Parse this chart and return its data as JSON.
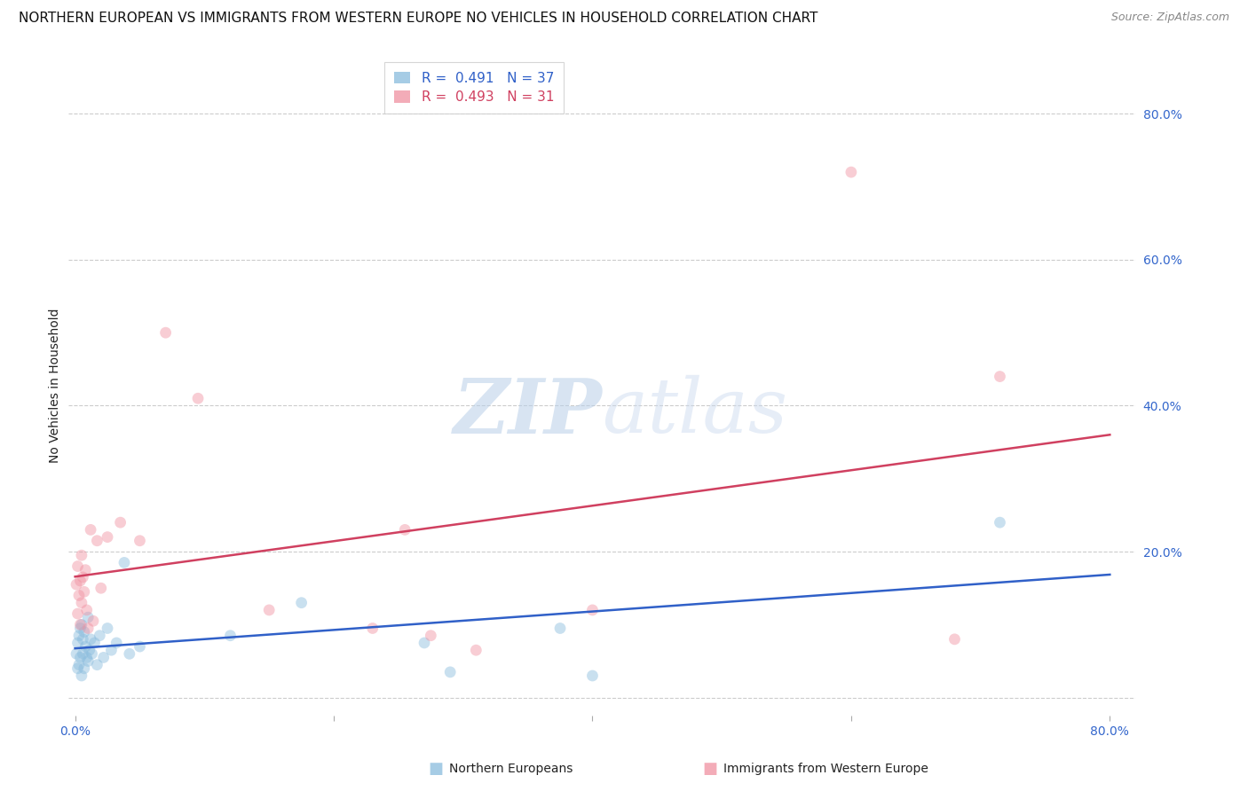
{
  "title": "NORTHERN EUROPEAN VS IMMIGRANTS FROM WESTERN EUROPE NO VEHICLES IN HOUSEHOLD CORRELATION CHART",
  "source": "Source: ZipAtlas.com",
  "ylabel": "No Vehicles in Household",
  "watermark_zip": "ZIP",
  "watermark_atlas": "atlas",
  "xlim": [
    -0.005,
    0.82
  ],
  "ylim": [
    -0.025,
    0.88
  ],
  "blue_R": 0.491,
  "blue_N": 37,
  "pink_R": 0.493,
  "pink_N": 31,
  "blue_color": "#88bbdd",
  "pink_color": "#f090a0",
  "blue_line_color": "#3060c8",
  "pink_line_color": "#d04060",
  "legend_label_blue": "Northern Europeans",
  "legend_label_pink": "Immigrants from Western Europe",
  "blue_x": [
    0.001,
    0.002,
    0.002,
    0.003,
    0.003,
    0.004,
    0.004,
    0.005,
    0.005,
    0.006,
    0.006,
    0.007,
    0.007,
    0.008,
    0.009,
    0.01,
    0.01,
    0.011,
    0.012,
    0.013,
    0.015,
    0.017,
    0.019,
    0.022,
    0.025,
    0.028,
    0.032,
    0.038,
    0.042,
    0.05,
    0.12,
    0.175,
    0.27,
    0.29,
    0.375,
    0.4,
    0.715
  ],
  "blue_y": [
    0.06,
    0.075,
    0.04,
    0.085,
    0.045,
    0.095,
    0.055,
    0.1,
    0.03,
    0.08,
    0.06,
    0.09,
    0.04,
    0.07,
    0.055,
    0.11,
    0.05,
    0.065,
    0.08,
    0.06,
    0.075,
    0.045,
    0.085,
    0.055,
    0.095,
    0.065,
    0.075,
    0.185,
    0.06,
    0.07,
    0.085,
    0.13,
    0.075,
    0.035,
    0.095,
    0.03,
    0.24
  ],
  "pink_x": [
    0.001,
    0.002,
    0.002,
    0.003,
    0.004,
    0.004,
    0.005,
    0.005,
    0.006,
    0.007,
    0.008,
    0.009,
    0.01,
    0.012,
    0.014,
    0.017,
    0.02,
    0.025,
    0.035,
    0.05,
    0.07,
    0.095,
    0.15,
    0.23,
    0.255,
    0.275,
    0.31,
    0.4,
    0.6,
    0.68,
    0.715
  ],
  "pink_y": [
    0.155,
    0.18,
    0.115,
    0.14,
    0.16,
    0.1,
    0.195,
    0.13,
    0.165,
    0.145,
    0.175,
    0.12,
    0.095,
    0.23,
    0.105,
    0.215,
    0.15,
    0.22,
    0.24,
    0.215,
    0.5,
    0.41,
    0.12,
    0.095,
    0.23,
    0.085,
    0.065,
    0.12,
    0.72,
    0.08,
    0.44
  ],
  "title_fontsize": 11,
  "source_fontsize": 9,
  "axis_label_fontsize": 10,
  "tick_label_fontsize": 10,
  "legend_fontsize": 11,
  "scatter_size": 85,
  "scatter_alpha": 0.45,
  "background_color": "#ffffff",
  "grid_color": "#cccccc"
}
